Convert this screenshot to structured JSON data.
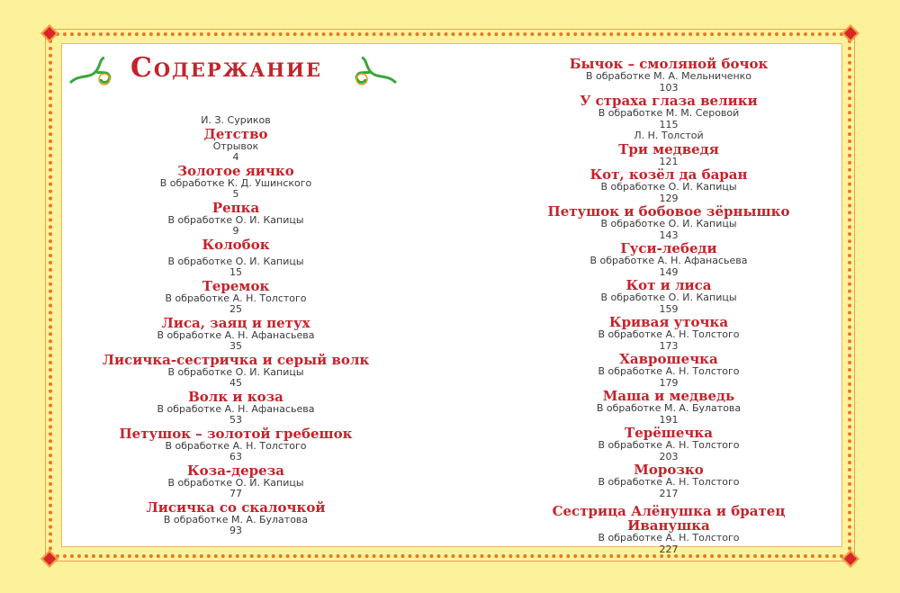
{
  "heading": "Содержание",
  "colors": {
    "accent": "#c4232b",
    "background": "#fdf29c",
    "border": "#e8762a"
  },
  "left": [
    {
      "author": "И. З. Суриков",
      "title": "Детство",
      "sub": "Отрывок",
      "page": "4"
    },
    {
      "title": "Золотое яичко",
      "sub": "В обработке К. Д. Ушинского",
      "page": "5"
    },
    {
      "title": "Репка",
      "sub": "В обработке О. И. Капицы",
      "page": "9"
    },
    {
      "title": "Колобок",
      "sub": "В обработке О. И. Капицы",
      "page": "15",
      "gap": true
    },
    {
      "title": "Теремок",
      "sub": "В обработке А. Н. Толстого",
      "page": "25"
    },
    {
      "title": "Лиса, заяц и петух",
      "sub": "В обработке А. Н. Афанасьева",
      "page": "35"
    },
    {
      "title": "Лисичка-сестричка и серый волк",
      "sub": "В обработке О. И. Капицы",
      "page": "45"
    },
    {
      "title": "Волк и коза",
      "sub": "В обработке А. Н. Афанасьева",
      "page": "53"
    },
    {
      "title": "Петушок – золотой гребешок",
      "sub": "В обработке А. Н. Толстого",
      "page": "63"
    },
    {
      "title": "Коза-дереза",
      "sub": "В обработке О. И. Капицы",
      "page": "77"
    },
    {
      "title": "Лисичка со скалочкой",
      "sub": "В обработке М. А. Булатова",
      "page": "93"
    }
  ],
  "right": [
    {
      "title": "Бычок – смоляной бочок",
      "sub": "В обработке М. А. Мельниченко",
      "page": "103"
    },
    {
      "title": "У страха глаза велики",
      "sub": "В обработке М. М. Серовой",
      "page": "115"
    },
    {
      "author": "Л. Н. Толстой",
      "title": "Три медведя",
      "page": "121"
    },
    {
      "title": "Кот, козёл да баран",
      "sub": "В обработке О. И. Капицы",
      "page": "129"
    },
    {
      "title": "Петушок и бобовое зёрнышко",
      "sub": "В обработке О. И. Капицы",
      "page": "143"
    },
    {
      "title": "Гуси-лебеди",
      "sub": "В обработке А. Н. Афанасьева",
      "page": "149"
    },
    {
      "title": "Кот и лиса",
      "sub": "В обработке О. И. Капицы",
      "page": "159"
    },
    {
      "title": "Кривая уточка",
      "sub": "В обработке А. Н. Толстого",
      "page": "173"
    },
    {
      "title": "Хаврошечка",
      "sub": "В обработке А. Н. Толстого",
      "page": "179"
    },
    {
      "title": "Маша и медведь",
      "sub": "В обработке М. А. Булатова",
      "page": "191"
    },
    {
      "title": "Терёшечка",
      "sub": "В обработке А. Н. Толстого",
      "page": "203"
    },
    {
      "title": "Морозко",
      "sub": "В обработке А. Н. Толстого",
      "page": "217"
    },
    {
      "title": "Сестрица Алёнушка и братец Иванушка",
      "sub": "В обработке А. Н. Толстого",
      "page": "227",
      "gap": true
    }
  ]
}
